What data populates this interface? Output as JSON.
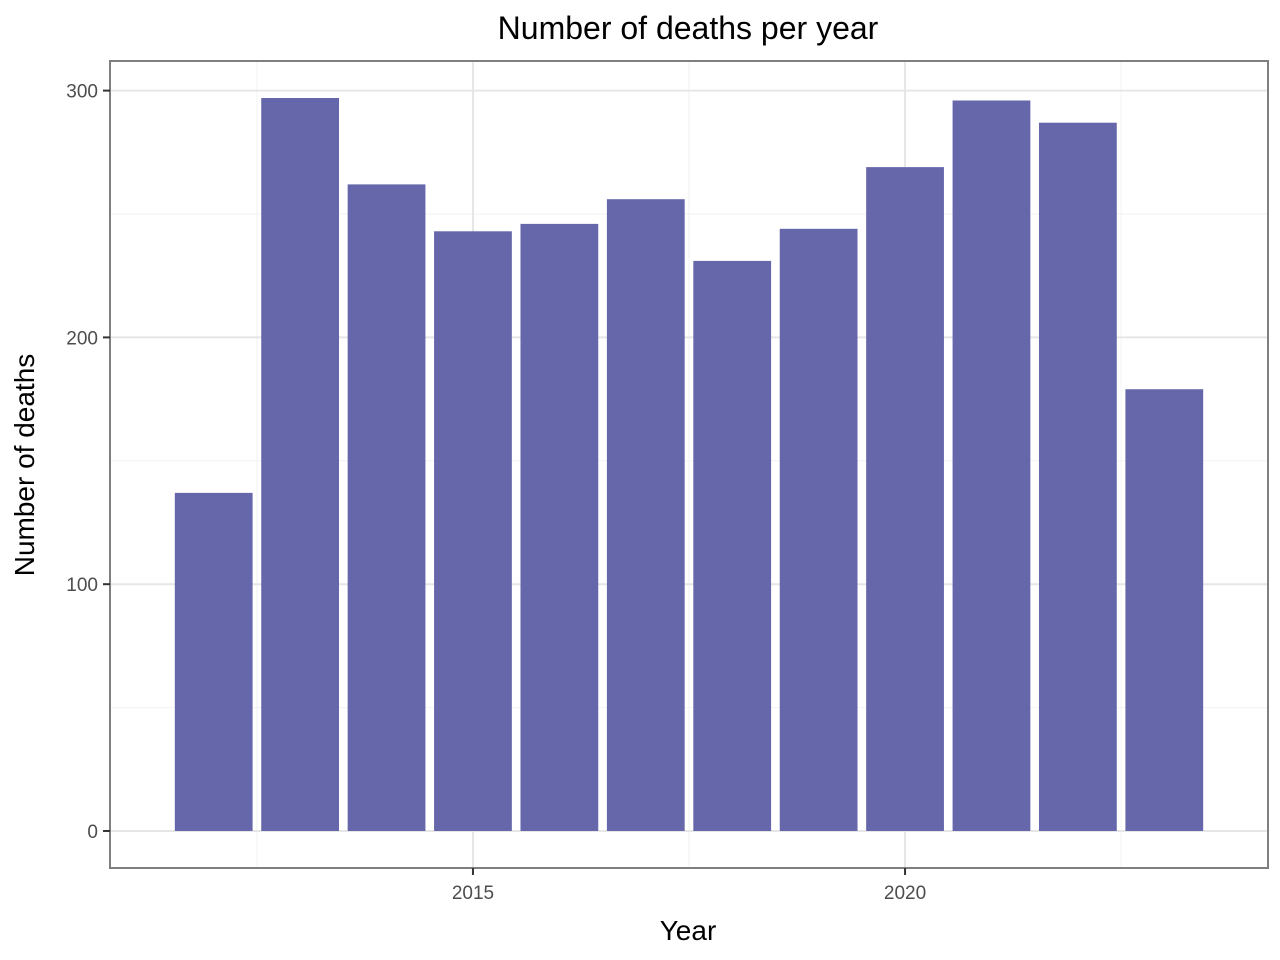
{
  "chart_data": {
    "type": "bar",
    "title": "Number of deaths per year",
    "xlabel": "Year",
    "ylabel": "Number of deaths",
    "x": [
      2012,
      2013,
      2014,
      2015,
      2016,
      2017,
      2018,
      2019,
      2020,
      2021,
      2022,
      2023
    ],
    "values": [
      137,
      297,
      262,
      243,
      246,
      256,
      231,
      244,
      269,
      296,
      287,
      179
    ],
    "xlim": [
      2010.8,
      2024.2
    ],
    "ylim": [
      -15,
      312
    ],
    "x_ticks": [
      "2015",
      "2020"
    ],
    "y_ticks": [
      "0",
      "100",
      "200",
      "300"
    ],
    "grid": true,
    "theme": "bw",
    "colors": {
      "bar": "#6667AB",
      "panel_border": "#7f7f7f",
      "grid_major": "#e6e6e6",
      "grid_minor": "#f2f2f2",
      "tick_text": "#4d4d4d"
    }
  }
}
